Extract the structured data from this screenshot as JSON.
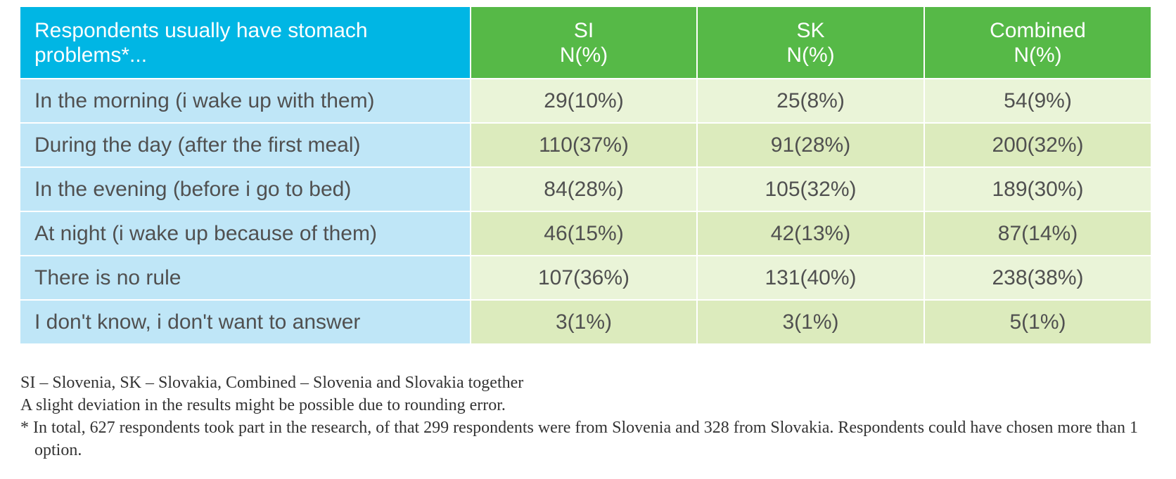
{
  "table": {
    "header": {
      "row_label": "Respondents usually have stomach problems*...",
      "columns": [
        {
          "name": "SI",
          "unit": "N(%)"
        },
        {
          "name": "SK",
          "unit": "N(%)"
        },
        {
          "name": "Combined",
          "unit": "N(%)"
        }
      ]
    },
    "rows": [
      {
        "label": "In the morning (i wake up with them)",
        "si": "29(10%)",
        "sk": "25(8%)",
        "combined": "54(9%)"
      },
      {
        "label": "During the day (after the first meal)",
        "si": "110(37%)",
        "sk": "91(28%)",
        "combined": "200(32%)"
      },
      {
        "label": "In the evening (before i go to bed)",
        "si": "84(28%)",
        "sk": "105(32%)",
        "combined": "189(30%)"
      },
      {
        "label": "At night (i wake up because of them)",
        "si": "46(15%)",
        "sk": "42(13%)",
        "combined": "87(14%)"
      },
      {
        "label": "There is no rule",
        "si": "107(36%)",
        "sk": "131(40%)",
        "combined": "238(38%)"
      },
      {
        "label": "I don't know, i don't want to answer",
        "si": "3(1%)",
        "sk": "3(1%)",
        "combined": "5(1%)"
      }
    ]
  },
  "notes": {
    "legend": "SI – Slovenia, SK – Slovakia, Combined – Slovenia and Slovakia together",
    "rounding": "A slight deviation in the results might be possible due to rounding error.",
    "footnote": "* In total, 627 respondents took part in the research, of that 299 respondents were from Slovenia and 328 from Slovakia. Respondents could have chosen more than 1 option."
  },
  "colors": {
    "row_header_bg": "#00b6e4",
    "column_header_bg": "#56b947",
    "label_cell_bg": "#bfe6f7",
    "value_cell_light": "#eaf4d8",
    "value_cell_dark": "#dcebbd"
  }
}
